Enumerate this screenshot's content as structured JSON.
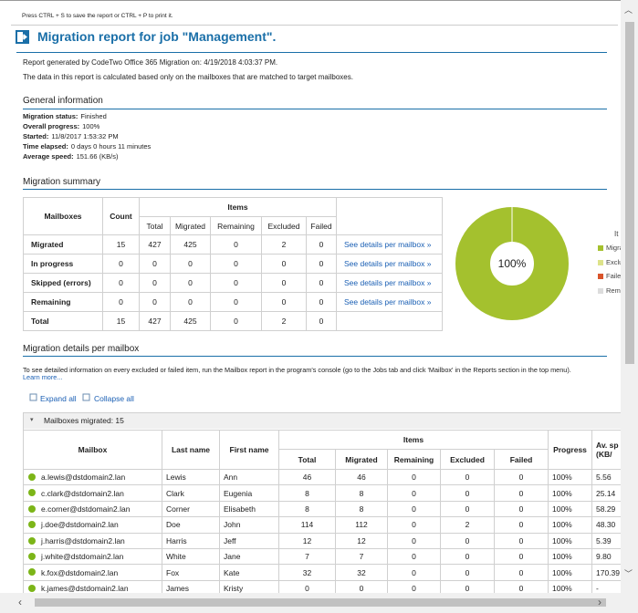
{
  "hint": "Press CTRL + S to save the report or CTRL + P to print it.",
  "title": "Migration report for job \"Management\".",
  "generated": "Report generated by CodeTwo Office 365 Migration on: 4/19/2018 4:03:37 PM.",
  "note": "The data in this report is calculated based only on the mailboxes that are matched to target mailboxes.",
  "general": {
    "heading": "General information",
    "items": [
      {
        "label": "Migration status:",
        "value": "Finished"
      },
      {
        "label": "Overall progress:",
        "value": "100%"
      },
      {
        "label": "Started:",
        "value": "11/8/2017 1:53:32 PM"
      },
      {
        "label": "Time elapsed:",
        "value": "0 days 0 hours 11 minutes"
      },
      {
        "label": "Average speed:",
        "value": "151.66 (KB/s)"
      }
    ]
  },
  "summary": {
    "heading": "Migration summary",
    "headers": {
      "mailboxes": "Mailboxes",
      "count": "Count",
      "items": "Items",
      "sub": [
        "Total",
        "Migrated",
        "Remaining",
        "Excluded",
        "Failed"
      ]
    },
    "rows": [
      [
        "Migrated",
        15,
        427,
        425,
        0,
        2,
        0,
        "See details per mailbox »"
      ],
      [
        "In progress",
        0,
        0,
        0,
        0,
        0,
        0,
        "See details per mailbox »"
      ],
      [
        "Skipped (errors)",
        0,
        0,
        0,
        0,
        0,
        0,
        "See details per mailbox »"
      ],
      [
        "Remaining",
        0,
        0,
        0,
        0,
        0,
        0,
        "See details per mailbox »"
      ],
      [
        "Total",
        15,
        427,
        425,
        0,
        2,
        0
      ]
    ]
  },
  "donut": {
    "center_label": "100%",
    "share": 100,
    "color": "#a4c12e",
    "legend_title": "It",
    "legend": [
      {
        "label": "Migra",
        "color": "#a4c12e"
      },
      {
        "label": "Exclu",
        "color": "#dde38a"
      },
      {
        "label": "Faile",
        "color": "#d9542b"
      },
      {
        "label": "Rema",
        "color": "#dcdcdc"
      }
    ]
  },
  "details": {
    "heading": "Migration details per mailbox",
    "text": "To see detailed information on every excluded or failed item, run the Mailbox report in the program's console (go to the Jobs tab and click 'Mailbox' in the Reports section in the top menu).",
    "learn_more": "Learn more...",
    "expand": "Expand all",
    "collapse": "Collapse all",
    "group": "Mailboxes migrated: 15",
    "headers": {
      "mailbox": "Mailbox",
      "last": "Last name",
      "first": "First name",
      "items": "Items",
      "sub": [
        "Total",
        "Migrated",
        "Remaining",
        "Excluded",
        "Failed"
      ],
      "progress": "Progress",
      "speed": [
        "Av. sp",
        "(KB/"
      ]
    },
    "rows": [
      [
        "a.lewis@dstdomain2.lan",
        "Lewis",
        "Ann",
        46,
        46,
        0,
        0,
        0,
        "100%",
        "5.56"
      ],
      [
        "c.clark@dstdomain2.lan",
        "Clark",
        "Eugenia",
        8,
        8,
        0,
        0,
        0,
        "100%",
        "25.14"
      ],
      [
        "e.corner@dstdomain2.lan",
        "Corner",
        "Elisabeth",
        8,
        8,
        0,
        0,
        0,
        "100%",
        "58.29"
      ],
      [
        "j.doe@dstdomain2.lan",
        "Doe",
        "John",
        114,
        112,
        0,
        2,
        0,
        "100%",
        "48.30"
      ],
      [
        "j.harris@dstdomain2.lan",
        "Harris",
        "Jeff",
        12,
        12,
        0,
        0,
        0,
        "100%",
        "5.39"
      ],
      [
        "j.white@dstdomain2.lan",
        "White",
        "Jane",
        7,
        7,
        0,
        0,
        0,
        "100%",
        "9.80"
      ],
      [
        "k.fox@dstdomain2.lan",
        "Fox",
        "Kate",
        32,
        32,
        0,
        0,
        0,
        "100%",
        "170.39"
      ],
      [
        "k.james@dstdomain2.lan",
        "James",
        "Kristy",
        0,
        0,
        0,
        0,
        0,
        "100%",
        "-"
      ]
    ]
  }
}
